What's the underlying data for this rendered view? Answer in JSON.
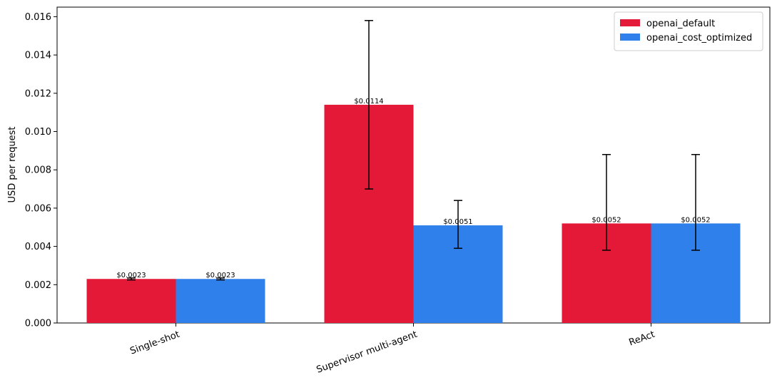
{
  "chart_data": {
    "type": "bar",
    "title": "",
    "xlabel": "",
    "ylabel": "USD per request",
    "ylim": [
      0,
      0.0165
    ],
    "yticks": [
      "0.000",
      "0.002",
      "0.004",
      "0.006",
      "0.008",
      "0.010",
      "0.012",
      "0.014",
      "0.016"
    ],
    "categories": [
      "Single-shot",
      "Supervisor multi-agent",
      "ReAct"
    ],
    "grid": false,
    "legend_position": "top-right",
    "series": [
      {
        "name": "openai_default",
        "color": "#e31937",
        "values": [
          0.0023,
          0.0114,
          0.0052
        ],
        "labels": [
          "$0.0023",
          "$0.0114",
          "$0.0052"
        ],
        "error_low": [
          0.00225,
          0.007,
          0.0038
        ],
        "error_high": [
          0.00235,
          0.0158,
          0.0088
        ]
      },
      {
        "name": "openai_cost_optimized",
        "color": "#2f80ea",
        "values": [
          0.0023,
          0.0051,
          0.0052
        ],
        "labels": [
          "$0.0023",
          "$0.0051",
          "$0.0052"
        ],
        "error_low": [
          0.00225,
          0.0039,
          0.0038
        ],
        "error_high": [
          0.00235,
          0.0064,
          0.0088
        ]
      }
    ]
  }
}
